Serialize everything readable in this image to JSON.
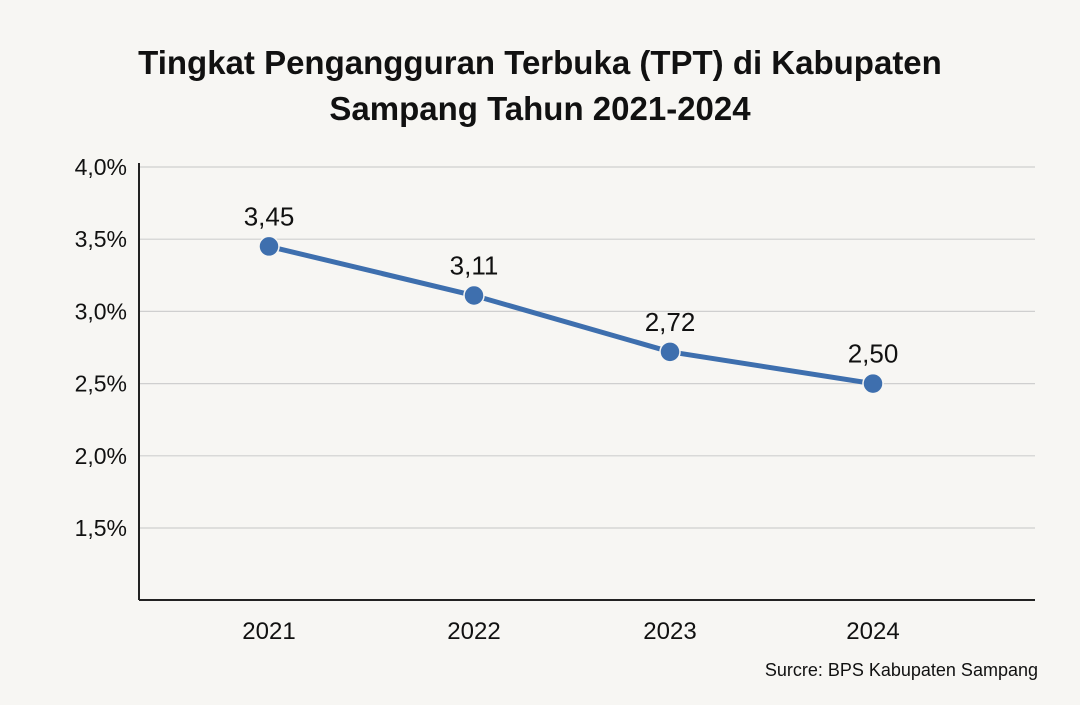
{
  "chart_data": {
    "type": "line",
    "title_lines": [
      "Tingkat Pengangguran Terbuka (TPT) di Kabupaten",
      "Sampang Tahun 2021-2024"
    ],
    "categories": [
      "2021",
      "2022",
      "2023",
      "2024"
    ],
    "series": [
      {
        "values": [
          3.45,
          3.11,
          2.72,
          2.5
        ],
        "labels": [
          "3,45",
          "3,11",
          "2,72",
          "2,50"
        ]
      }
    ],
    "yticks": [
      1.5,
      2.0,
      2.5,
      3.0,
      3.5,
      4.0
    ],
    "ytick_labels": [
      "1,5%",
      "2,0%",
      "2,5%",
      "3,0%",
      "3,5%",
      "4,0%"
    ],
    "ylim": [
      1.05,
      4.0
    ],
    "grid": true,
    "line_color": "#3e6fae",
    "source": "Surcre: BPS Kabupaten Sampang"
  }
}
